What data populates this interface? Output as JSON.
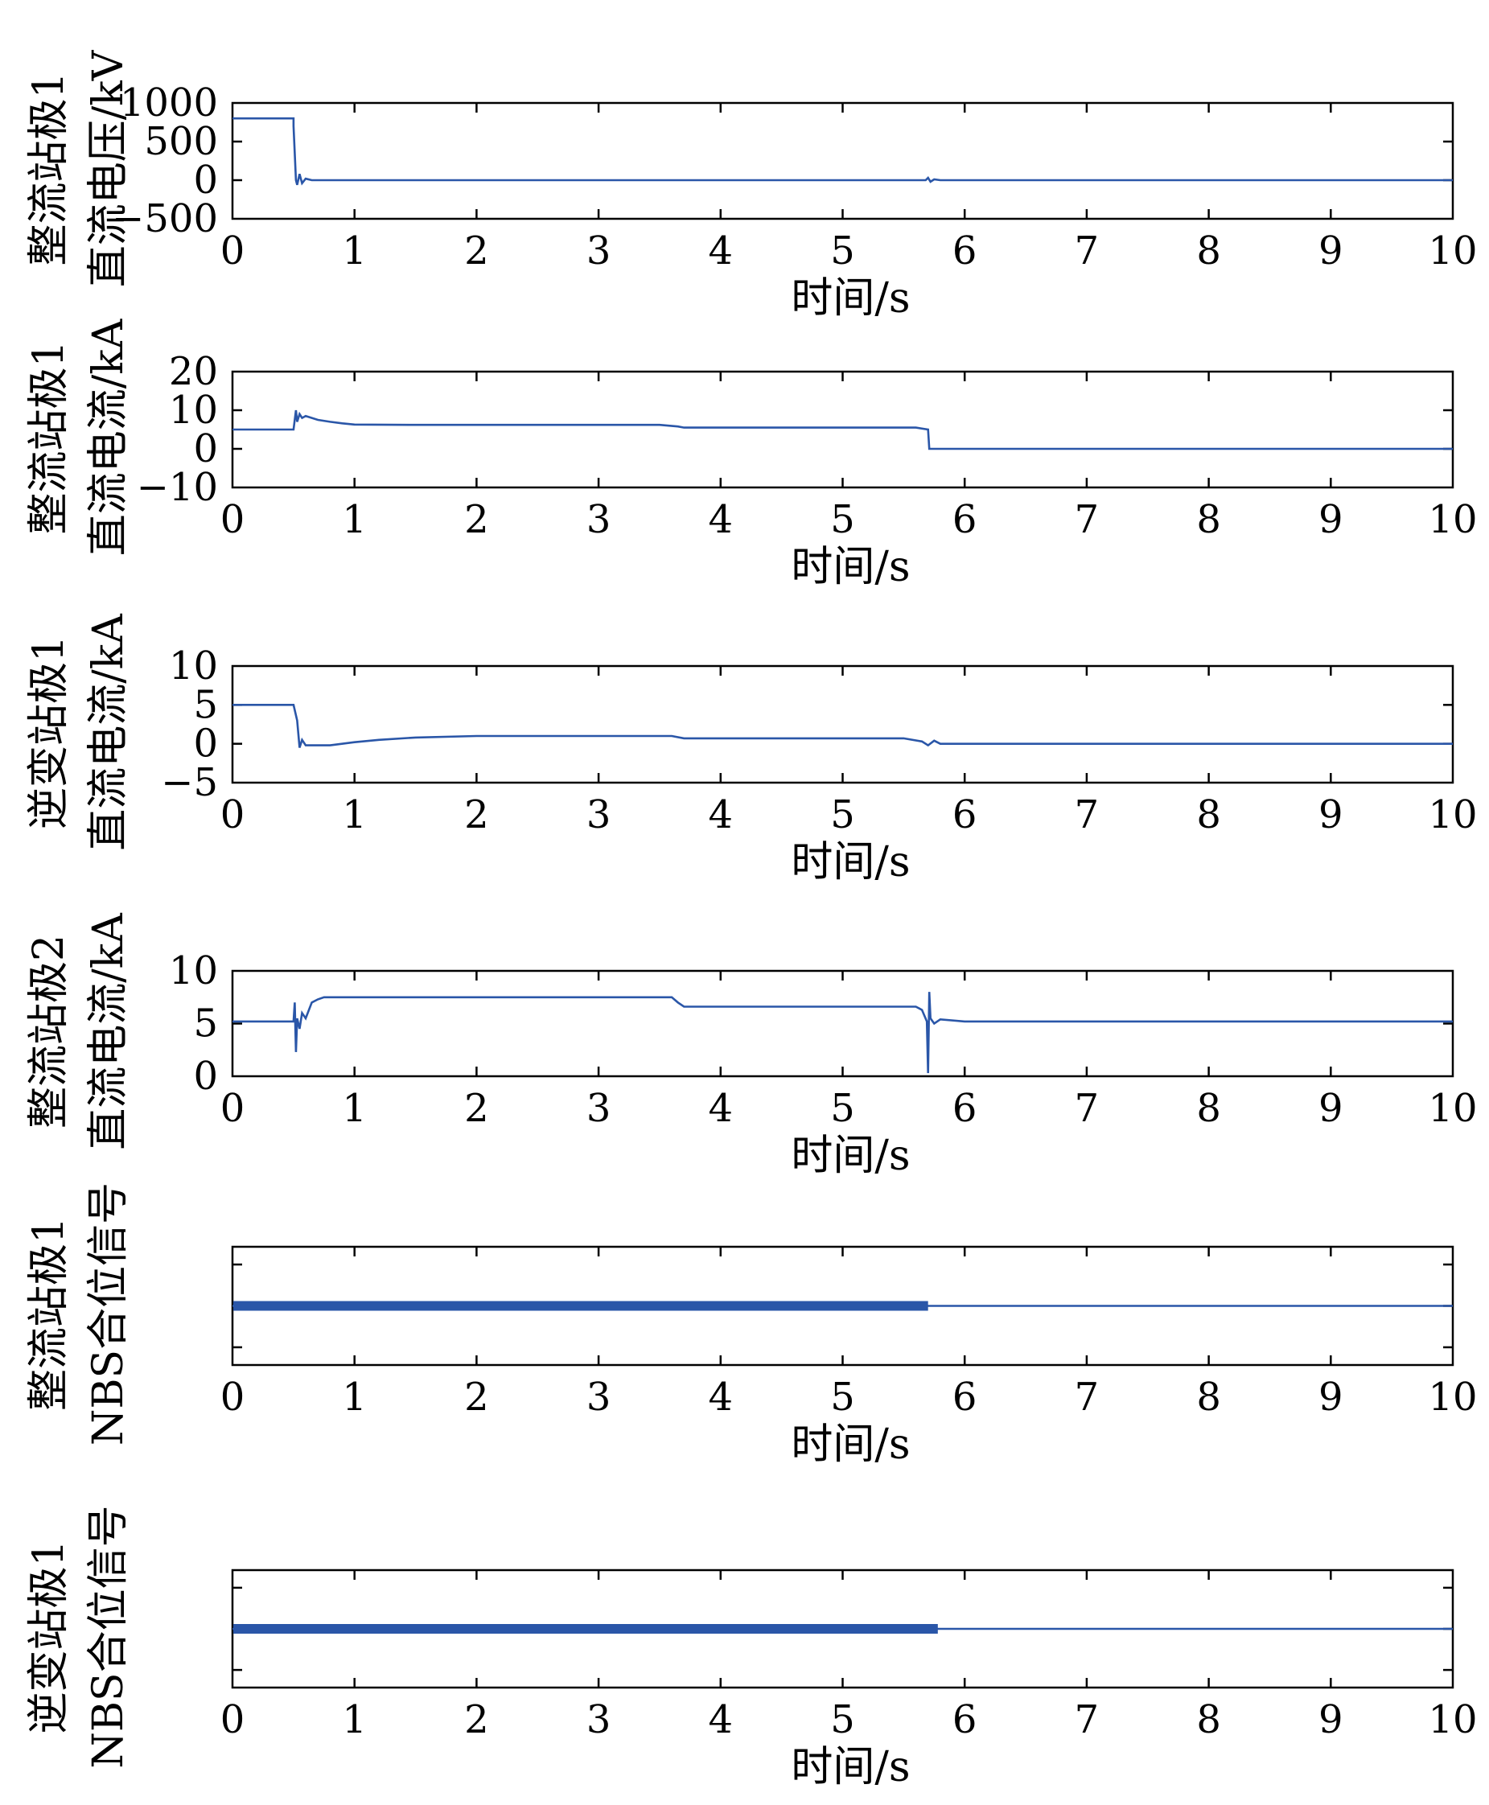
{
  "colors": {
    "line": "#2a56a8",
    "axis": "#000000",
    "background": "#ffffff"
  },
  "chart_data": [
    {
      "type": "line",
      "ylabel": [
        "整流站极1",
        "直流电压/kV"
      ],
      "xlabel": "时间/s",
      "xlim": [
        0,
        10
      ],
      "ylim": [
        -500,
        1000
      ],
      "xticks": [
        "0",
        "1",
        "2",
        "3",
        "4",
        "5",
        "6",
        "7",
        "8",
        "9",
        "10"
      ],
      "yticks": [
        {
          "value": 1000,
          "label": "1000"
        },
        {
          "value": 500,
          "label": "500"
        },
        {
          "value": 0,
          "label": "0"
        },
        {
          "value": -500,
          "label": "−500"
        }
      ],
      "series": [
        {
          "x": [
            0,
            0.5,
            0.5,
            0.52,
            0.53,
            0.55,
            0.57,
            0.6,
            0.65,
            1,
            5,
            5.68,
            5.7,
            5.72,
            5.75,
            5.8,
            6,
            10
          ],
          "y": [
            800,
            800,
            700,
            0,
            -60,
            80,
            -40,
            20,
            0,
            0,
            0,
            0,
            30,
            -20,
            10,
            0,
            0,
            0
          ]
        }
      ]
    },
    {
      "type": "line",
      "ylabel": [
        "整流站极1",
        "直流电流/kA"
      ],
      "xlabel": "时间/s",
      "xlim": [
        0,
        10
      ],
      "ylim": [
        -10,
        20
      ],
      "xticks": [
        "0",
        "1",
        "2",
        "3",
        "4",
        "5",
        "6",
        "7",
        "8",
        "9",
        "10"
      ],
      "yticks": [
        {
          "value": 20,
          "label": "20"
        },
        {
          "value": 10,
          "label": "10"
        },
        {
          "value": 0,
          "label": "0"
        },
        {
          "value": -10,
          "label": "−10"
        }
      ],
      "series": [
        {
          "x": [
            0,
            0.5,
            0.52,
            0.53,
            0.55,
            0.57,
            0.6,
            0.7,
            0.8,
            0.9,
            1,
            1.5,
            3,
            3.5,
            3.65,
            3.7,
            4,
            5,
            5.6,
            5.7,
            5.71,
            6,
            10
          ],
          "y": [
            5,
            5,
            10,
            7,
            9,
            8,
            8.5,
            7.5,
            7,
            6.6,
            6.3,
            6.2,
            6.2,
            6.2,
            5.8,
            5.5,
            5.5,
            5.5,
            5.5,
            5,
            0,
            0,
            0
          ]
        }
      ]
    },
    {
      "type": "line",
      "ylabel": [
        "逆变站极1",
        "直流电流/kA"
      ],
      "xlabel": "时间/s",
      "xlim": [
        0,
        10
      ],
      "ylim": [
        -5,
        10
      ],
      "xticks": [
        "0",
        "1",
        "2",
        "3",
        "4",
        "5",
        "6",
        "7",
        "8",
        "9",
        "10"
      ],
      "yticks": [
        {
          "value": 10,
          "label": "10"
        },
        {
          "value": 5,
          "label": "5"
        },
        {
          "value": 0,
          "label": "0"
        },
        {
          "value": -5,
          "label": "−5"
        }
      ],
      "series": [
        {
          "x": [
            0,
            0.5,
            0.53,
            0.55,
            0.57,
            0.6,
            0.8,
            1,
            1.2,
            1.5,
            2,
            3,
            3.6,
            3.7,
            4,
            5,
            5.5,
            5.65,
            5.7,
            5.75,
            5.8,
            6,
            10
          ],
          "y": [
            5,
            5,
            3,
            -0.5,
            0.5,
            -0.2,
            -0.2,
            0.2,
            0.5,
            0.8,
            1,
            1,
            1,
            0.7,
            0.7,
            0.7,
            0.7,
            0.3,
            -0.2,
            0.4,
            0,
            0,
            0
          ]
        }
      ]
    },
    {
      "type": "line",
      "ylabel": [
        "整流站极2",
        "直流电流/kA"
      ],
      "xlabel": "时间/s",
      "xlim": [
        0,
        10
      ],
      "ylim": [
        0,
        10
      ],
      "xticks": [
        "0",
        "1",
        "2",
        "3",
        "4",
        "5",
        "6",
        "7",
        "8",
        "9",
        "10"
      ],
      "yticks": [
        {
          "value": 10,
          "label": "10"
        },
        {
          "value": 5,
          "label": "5"
        },
        {
          "value": 0,
          "label": "0"
        }
      ],
      "series": [
        {
          "x": [
            0,
            0.5,
            0.51,
            0.52,
            0.53,
            0.55,
            0.57,
            0.6,
            0.65,
            0.7,
            0.75,
            0.8,
            1,
            3,
            3.6,
            3.65,
            3.7,
            4,
            5,
            5.6,
            5.65,
            5.69,
            5.7,
            5.71,
            5.72,
            5.75,
            5.8,
            6,
            10
          ],
          "y": [
            5.2,
            5.2,
            7,
            2.3,
            5.5,
            4.5,
            6,
            5.5,
            7,
            7.3,
            7.5,
            7.5,
            7.5,
            7.5,
            7.5,
            7,
            6.6,
            6.6,
            6.6,
            6.6,
            6.3,
            5.2,
            0.3,
            8,
            5.5,
            5,
            5.4,
            5.2,
            5.2
          ]
        }
      ]
    },
    {
      "type": "line",
      "ylabel": [
        "整流站极1",
        "NBS合位信号"
      ],
      "xlabel": "时间/s",
      "xlim": [
        0,
        10
      ],
      "ylim": [
        0,
        1
      ],
      "xticks": [
        "0",
        "1",
        "2",
        "3",
        "4",
        "5",
        "6",
        "7",
        "8",
        "9",
        "10"
      ],
      "yticks": [
        {
          "value": 0.85,
          "label": ""
        },
        {
          "value": 0.5,
          "label": ""
        },
        {
          "value": 0.15,
          "label": ""
        }
      ],
      "series": [
        {
          "x": [
            0,
            5.7,
            5.7,
            10
          ],
          "y": [
            0.5,
            0.5,
            0.5,
            0.5
          ],
          "thick_until": 5.7
        }
      ]
    },
    {
      "type": "line",
      "ylabel": [
        "逆变站极1",
        "NBS合位信号"
      ],
      "xlabel": "时间/s",
      "xlim": [
        0,
        10
      ],
      "ylim": [
        0,
        1
      ],
      "xticks": [
        "0",
        "1",
        "2",
        "3",
        "4",
        "5",
        "6",
        "7",
        "8",
        "9",
        "10"
      ],
      "yticks": [
        {
          "value": 0.85,
          "label": ""
        },
        {
          "value": 0.5,
          "label": ""
        },
        {
          "value": 0.15,
          "label": ""
        }
      ],
      "series": [
        {
          "x": [
            0,
            5.78,
            5.78,
            10
          ],
          "y": [
            0.5,
            0.5,
            0.5,
            0.5
          ],
          "thick_until": 5.78
        }
      ]
    }
  ]
}
